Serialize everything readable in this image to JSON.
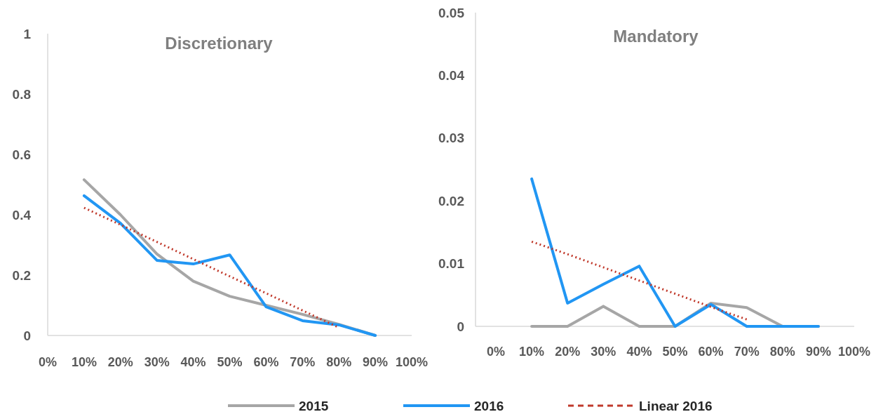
{
  "chart_data": [
    {
      "type": "line",
      "title": "Discretionary",
      "categories": [
        "0%",
        "10%",
        "20%",
        "30%",
        "40%",
        "50%",
        "60%",
        "70%",
        "80%",
        "90%",
        "100%"
      ],
      "ylim": [
        0,
        1
      ],
      "yticks": [
        0,
        0.2,
        0.4,
        0.6,
        0.8,
        1
      ],
      "grid": false,
      "legend": "bottom",
      "marker": "none",
      "series": [
        {
          "name": "2015",
          "color": "#a6a6a6",
          "values": [
            null,
            0.516,
            0.4,
            0.27,
            0.18,
            0.13,
            0.1,
            0.07,
            0.037,
            0,
            null
          ]
        },
        {
          "name": "2016",
          "color": "#2196f3",
          "values": [
            null,
            0.463,
            0.372,
            0.249,
            0.237,
            0.267,
            0.095,
            0.049,
            0.035,
            0,
            null
          ]
        },
        {
          "name": "Linear 2016",
          "color": "#c0392b",
          "line_style": "dotted",
          "values": [
            null,
            0.423,
            0.367,
            0.31,
            0.253,
            0.196,
            0.14,
            0.083,
            0.026,
            null,
            null
          ]
        }
      ]
    },
    {
      "type": "line",
      "title": "Mandatory",
      "categories": [
        "0%",
        "10%",
        "20%",
        "30%",
        "40%",
        "50%",
        "60%",
        "70%",
        "80%",
        "90%",
        "100%"
      ],
      "ylim": [
        0,
        0.05
      ],
      "yticks": [
        0,
        0.01,
        0.02,
        0.03,
        0.04,
        0.05
      ],
      "grid": false,
      "legend": false,
      "marker": "none",
      "series": [
        {
          "color": "#a6a6a6",
          "values": [
            null,
            0,
            0,
            0.0032,
            0,
            0,
            0.0037,
            0.003,
            0,
            0,
            null
          ]
        },
        {
          "color": "#2196f3",
          "values": [
            null,
            0.0235,
            0.0037,
            0.0067,
            0.0096,
            0,
            0.0035,
            0,
            0,
            0,
            null
          ]
        },
        {
          "color": "#c0392b",
          "line_style": "dotted",
          "values": [
            null,
            0.0135,
            0.0115,
            0.0094,
            0.0073,
            0.0052,
            0.0031,
            0.0011,
            null,
            null,
            null
          ]
        }
      ]
    }
  ]
}
